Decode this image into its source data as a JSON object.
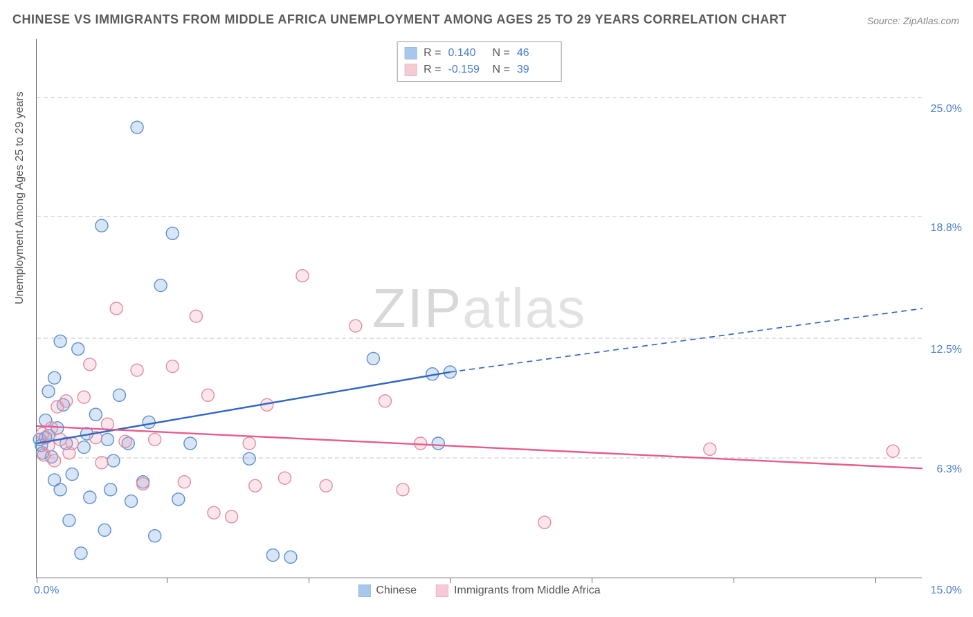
{
  "title": "CHINESE VS IMMIGRANTS FROM MIDDLE AFRICA UNEMPLOYMENT AMONG AGES 25 TO 29 YEARS CORRELATION CHART",
  "source": "Source: ZipAtlas.com",
  "ylabel": "Unemployment Among Ages 25 to 29 years",
  "watermark_a": "ZIP",
  "watermark_b": "atlas",
  "chart": {
    "type": "scatter",
    "background_color": "#ffffff",
    "grid_color": "#e0e0e0",
    "axis_color": "#666666",
    "title_color": "#5a5a5a",
    "title_fontsize": 18,
    "label_fontsize": 16,
    "tick_color": "#4a7fc9",
    "xlim": [
      0,
      15
    ],
    "ylim": [
      0,
      28
    ],
    "yticks": [
      {
        "v": 6.3,
        "label": "6.3%"
      },
      {
        "v": 12.5,
        "label": "12.5%"
      },
      {
        "v": 18.8,
        "label": "18.8%"
      },
      {
        "v": 25.0,
        "label": "25.0%"
      }
    ],
    "xtick_left": "0.0%",
    "xtick_right": "15.0%",
    "xtick_marks": [
      0,
      2.2,
      4.6,
      7.0,
      9.4,
      11.8,
      14.2
    ],
    "marker_radius": 9,
    "marker_fill_opacity": 0.28,
    "marker_stroke_width": 1.4,
    "series": [
      {
        "name": "Chinese",
        "color": "#6fa3e0",
        "stroke": "#5b8fcf",
        "r_label": "R =",
        "r_value": "0.140",
        "n_label": "N =",
        "n_value": "46",
        "trend": {
          "x1": 0,
          "y1": 7.0,
          "x2": 7.0,
          "y2": 10.7,
          "dash_x2": 15.0,
          "dash_y2": 14.0,
          "line_color": "#2f66c4",
          "width": 2.4
        },
        "points": [
          [
            0.05,
            7.2
          ],
          [
            0.08,
            6.9
          ],
          [
            0.1,
            6.5
          ],
          [
            0.15,
            8.2
          ],
          [
            0.15,
            7.3
          ],
          [
            0.2,
            9.7
          ],
          [
            0.2,
            7.4
          ],
          [
            0.25,
            6.3
          ],
          [
            0.3,
            10.4
          ],
          [
            0.3,
            5.1
          ],
          [
            0.35,
            7.8
          ],
          [
            0.4,
            12.3
          ],
          [
            0.4,
            4.6
          ],
          [
            0.45,
            9.0
          ],
          [
            0.5,
            7.0
          ],
          [
            0.55,
            3.0
          ],
          [
            0.6,
            5.4
          ],
          [
            0.7,
            11.9
          ],
          [
            0.75,
            1.3
          ],
          [
            0.8,
            6.8
          ],
          [
            0.85,
            7.5
          ],
          [
            0.9,
            4.2
          ],
          [
            1.0,
            8.5
          ],
          [
            1.1,
            18.3
          ],
          [
            1.15,
            2.5
          ],
          [
            1.2,
            7.2
          ],
          [
            1.25,
            4.6
          ],
          [
            1.3,
            6.1
          ],
          [
            1.4,
            9.5
          ],
          [
            1.55,
            7.0
          ],
          [
            1.6,
            4.0
          ],
          [
            1.7,
            23.4
          ],
          [
            1.8,
            5.0
          ],
          [
            1.9,
            8.1
          ],
          [
            2.0,
            2.2
          ],
          [
            2.1,
            15.2
          ],
          [
            2.3,
            17.9
          ],
          [
            2.4,
            4.1
          ],
          [
            2.6,
            7.0
          ],
          [
            3.6,
            6.2
          ],
          [
            4.0,
            1.2
          ],
          [
            4.3,
            1.1
          ],
          [
            5.7,
            11.4
          ],
          [
            6.7,
            10.6
          ],
          [
            6.8,
            7.0
          ],
          [
            7.0,
            10.7
          ]
        ]
      },
      {
        "name": "Immigrants from Middle Africa",
        "color": "#f1a7b8",
        "stroke": "#e38ba1",
        "r_label": "R =",
        "r_value": "-0.159",
        "n_label": "N =",
        "n_value": "39",
        "trend": {
          "x1": 0,
          "y1": 7.9,
          "x2": 15.0,
          "y2": 5.7,
          "line_color": "#e75b8d",
          "width": 2.4
        },
        "points": [
          [
            0.1,
            7.5
          ],
          [
            0.12,
            6.4
          ],
          [
            0.2,
            6.9
          ],
          [
            0.25,
            7.8
          ],
          [
            0.3,
            6.1
          ],
          [
            0.35,
            8.9
          ],
          [
            0.4,
            7.2
          ],
          [
            0.5,
            9.2
          ],
          [
            0.55,
            6.5
          ],
          [
            0.6,
            7.0
          ],
          [
            0.8,
            9.4
          ],
          [
            0.9,
            11.1
          ],
          [
            1.0,
            7.3
          ],
          [
            1.1,
            6.0
          ],
          [
            1.2,
            8.0
          ],
          [
            1.35,
            14.0
          ],
          [
            1.5,
            7.1
          ],
          [
            1.7,
            10.8
          ],
          [
            1.8,
            4.9
          ],
          [
            2.0,
            7.2
          ],
          [
            2.3,
            11.0
          ],
          [
            2.5,
            5.0
          ],
          [
            2.7,
            13.6
          ],
          [
            2.9,
            9.5
          ],
          [
            3.0,
            3.4
          ],
          [
            3.3,
            3.2
          ],
          [
            3.6,
            7.0
          ],
          [
            3.7,
            4.8
          ],
          [
            3.9,
            9.0
          ],
          [
            4.2,
            5.2
          ],
          [
            4.5,
            15.7
          ],
          [
            4.9,
            4.8
          ],
          [
            5.4,
            13.1
          ],
          [
            5.9,
            9.2
          ],
          [
            6.2,
            4.6
          ],
          [
            6.5,
            7.0
          ],
          [
            8.6,
            2.9
          ],
          [
            11.4,
            6.7
          ],
          [
            14.5,
            6.6
          ]
        ]
      }
    ]
  }
}
